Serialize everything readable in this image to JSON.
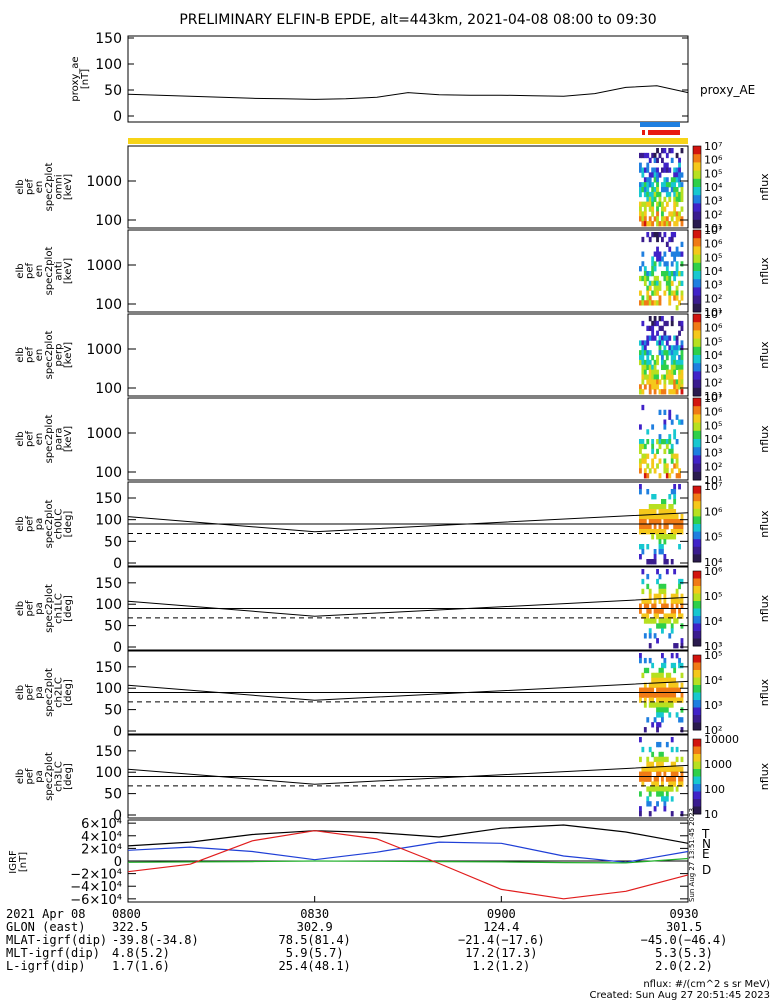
{
  "title": "PRELIMINARY ELFIN-B EPDE, alt=443km, 2021-04-08 08:00 to 09:30",
  "panels": [
    {
      "id": "ae",
      "ylabel": [
        "proxy_ae",
        "[nT]"
      ],
      "ticks": [
        "150",
        "100",
        "50",
        "0"
      ],
      "right": "proxy_AE"
    },
    {
      "id": "omni",
      "ylabel": [
        "elb",
        "pef",
        "en",
        "spec2plot",
        "omni",
        "[keV]"
      ],
      "ticks": [
        "1000",
        "100"
      ],
      "cbar": [
        "10⁷",
        "10⁶",
        "10⁵",
        "10⁴",
        "10³",
        "10²",
        "10¹"
      ],
      "cbar_label": "nflux"
    },
    {
      "id": "anti",
      "ylabel": [
        "elb",
        "pef",
        "en",
        "spec2plot",
        "anti",
        "[keV]"
      ],
      "ticks": [
        "1000",
        "100"
      ],
      "cbar": [
        "10⁷",
        "10⁶",
        "10⁵",
        "10⁴",
        "10³",
        "10²",
        "10¹"
      ],
      "cbar_label": "nflux"
    },
    {
      "id": "perp",
      "ylabel": [
        "elb",
        "pef",
        "en",
        "spec2plot",
        "perp",
        "[keV]"
      ],
      "ticks": [
        "1000",
        "100"
      ],
      "cbar": [
        "10⁷",
        "10⁶",
        "10⁵",
        "10⁴",
        "10³",
        "10²",
        "10¹"
      ],
      "cbar_label": "nflux"
    },
    {
      "id": "para",
      "ylabel": [
        "elb",
        "pef",
        "en",
        "spec2plot",
        "para",
        "[keV]"
      ],
      "ticks": [
        "1000",
        "100"
      ],
      "cbar": [
        "10⁷",
        "10⁶",
        "10⁵",
        "10⁴",
        "10³",
        "10²",
        "10¹"
      ],
      "cbar_label": "nflux"
    },
    {
      "id": "ch0",
      "ylabel": [
        "elb",
        "pef",
        "pa",
        "spec2plot",
        "ch0LC",
        "[deg]"
      ],
      "ticks": [
        "150",
        "100",
        "50",
        "0"
      ],
      "cbar": [
        "10⁷",
        "10⁶",
        "10⁵",
        "10⁴"
      ],
      "cbar_label": "nflux"
    },
    {
      "id": "ch1",
      "ylabel": [
        "elb",
        "pef",
        "pa",
        "spec2plot",
        "ch1LC",
        "[deg]"
      ],
      "ticks": [
        "150",
        "100",
        "50",
        "0"
      ],
      "cbar": [
        "10⁶",
        "10⁵",
        "10⁴",
        "10³"
      ],
      "cbar_label": "nflux"
    },
    {
      "id": "ch2",
      "ylabel": [
        "elb",
        "pef",
        "pa",
        "spec2plot",
        "ch2LC",
        "[deg]"
      ],
      "ticks": [
        "150",
        "100",
        "50",
        "0"
      ],
      "cbar": [
        "10⁵",
        "10⁴",
        "10³",
        "10²"
      ],
      "cbar_label": "nflux"
    },
    {
      "id": "ch3",
      "ylabel": [
        "elb",
        "pef",
        "pa",
        "spec2plot",
        "ch3LC",
        "[deg]"
      ],
      "ticks": [
        "150",
        "100",
        "50",
        "0"
      ],
      "cbar": [
        "10000",
        "1000",
        "100",
        "10"
      ],
      "cbar_label": "nflux"
    },
    {
      "id": "igrf",
      "ylabel": [
        "IGRF",
        "[nT]"
      ],
      "ticks": [
        "6×10⁴",
        "4×10⁴",
        "2×10⁴",
        "0",
        "−2×10⁴",
        "−4×10⁴",
        "−6×10⁴"
      ],
      "legend": [
        "T",
        "N",
        "E",
        "D"
      ]
    }
  ],
  "time_axis": {
    "row_labels": [
      "2021 Apr 08",
      "GLON (east)",
      "MLAT-igrf(dip)",
      "MLT-igrf(dip)",
      "L-igrf(dip)"
    ],
    "columns": [
      {
        "time": "0800",
        "glon": "322.5",
        "mlat": "-39.8(-34.8)",
        "mlt": "4.8(5.2)",
        "l": "1.7(1.6)"
      },
      {
        "time": "0830",
        "glon": "302.9",
        "mlat": "78.5(81.4)",
        "mlt": "5.9(5.7)",
        "l": "25.4(48.1)"
      },
      {
        "time": "0900",
        "glon": "124.4",
        "mlat": "−21.4(−17.6)",
        "mlt": "17.2(17.3)",
        "l": "1.2(1.2)"
      },
      {
        "time": "0930",
        "glon": "301.5",
        "mlat": "−45.0(−46.4)",
        "mlt": "5.3(5.3)",
        "l": "2.0(2.2)"
      }
    ]
  },
  "footer": {
    "units": "nflux: #/(cm^2 s sr MeV)",
    "created": "Created: Sun Aug 27 20:51:45 2023",
    "side_stamp": "Sun Aug 27 13:51:45 2023"
  },
  "colors": {
    "yellow": "#f7d417",
    "blue": "#1f7fe0",
    "red": "#e8190f",
    "T": "#000000",
    "N": "#1f3fd6",
    "E": "#22b12b",
    "D": "#e11d1d"
  },
  "chart_data": {
    "type": "line",
    "x_range": [
      "08:00",
      "09:30"
    ],
    "proxy_ae": {
      "x_min": [
        0,
        5,
        10,
        15,
        20,
        25,
        30,
        35,
        40,
        45,
        50,
        55,
        60,
        65,
        70,
        75,
        80,
        85,
        90
      ],
      "values": [
        42,
        40,
        38,
        36,
        34,
        33,
        32,
        33,
        36,
        45,
        41,
        40,
        40,
        39,
        38,
        43,
        55,
        58,
        45
      ],
      "ylim": [
        0,
        150
      ]
    },
    "igrf": {
      "x_min": [
        0,
        10,
        20,
        30,
        40,
        50,
        60,
        70,
        80,
        90
      ],
      "series": [
        {
          "name": "T",
          "values": [
            24000,
            30000,
            42000,
            48000,
            45000,
            38000,
            52000,
            57000,
            46000,
            28000
          ]
        },
        {
          "name": "N",
          "values": [
            17000,
            22000,
            15000,
            2000,
            14000,
            30000,
            28000,
            8000,
            -2000,
            15000
          ]
        },
        {
          "name": "E",
          "values": [
            -2000,
            -1500,
            -1000,
            0,
            -500,
            -1000,
            -1500,
            -2500,
            -3000,
            4000
          ]
        },
        {
          "name": "D",
          "values": [
            -17000,
            -5000,
            32000,
            48000,
            35000,
            -4000,
            -45000,
            -60000,
            -48000,
            -22000
          ]
        }
      ],
      "ylim": [
        -65000,
        65000
      ]
    }
  }
}
